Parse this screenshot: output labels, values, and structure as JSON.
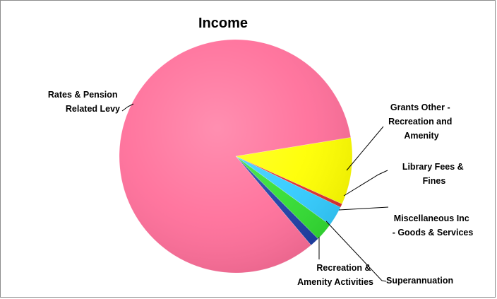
{
  "chart_data": {
    "type": "pie",
    "title": "Income",
    "unit": "percent",
    "slices": [
      {
        "label": "Rates & Pension Related Levy",
        "value": 83.6,
        "color": "#ff6f9a"
      },
      {
        "label": "Grants Other - Recreation and Amenity",
        "value": 9.3,
        "color": "#ffff00"
      },
      {
        "label": "Library Fees & Fines",
        "value": 0.5,
        "color": "#e0302e"
      },
      {
        "label": "Miscellaneous Inc - Goods & Services",
        "value": 2.8,
        "color": "#33ccff"
      },
      {
        "label": "Superannuation",
        "value": 2.5,
        "color": "#33dd33"
      },
      {
        "label": "Recreation & Amenity Activities",
        "value": 1.3,
        "color": "#1f3fa6"
      }
    ]
  },
  "labels": {
    "title": "Income",
    "rates": [
      "Rates & Pension",
      "Related Levy"
    ],
    "grants": [
      "Grants Other -",
      "Recreation and",
      "Amenity"
    ],
    "library": [
      "Library Fees &",
      "Fines"
    ],
    "misc": [
      "Miscellaneous Inc",
      "- Goods & Services"
    ],
    "recreation": [
      "Recreation &",
      "Amenity Activities"
    ],
    "superannuation": [
      "Superannuation"
    ]
  }
}
